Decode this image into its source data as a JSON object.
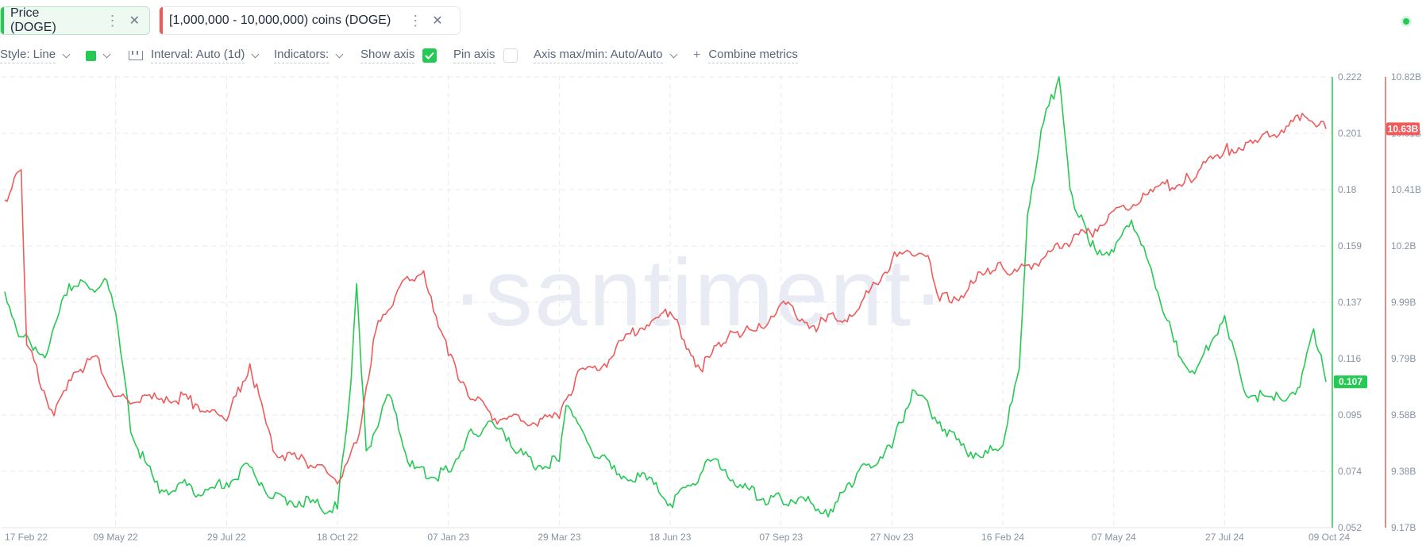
{
  "tabs": [
    {
      "label": "Price (DOGE)",
      "color": "#26c953"
    },
    {
      "label": "[1,000,000 - 10,000,000) coins (DOGE)",
      "color": "#ef5b5b"
    }
  ],
  "toolbar": {
    "style": "Style: Line",
    "interval": "Interval: Auto (1d)",
    "indicators": "Indicators:",
    "show_axis": "Show axis",
    "show_axis_checked": true,
    "pin_axis": "Pin axis",
    "pin_axis_checked": false,
    "axis_maxmin": "Axis max/min: Auto/Auto",
    "combine": "Combine metrics",
    "combine_icon": "plus-icon"
  },
  "watermark": "·santiment·",
  "chart_data": {
    "type": "line",
    "x_ticks": [
      "17 Feb 22",
      "09 May 22",
      "29 Jul 22",
      "18 Oct 22",
      "07 Jan 23",
      "29 Mar 23",
      "18 Jun 23",
      "07 Sep 23",
      "27 Nov 23",
      "16 Feb 24",
      "07 May 24",
      "27 Jul 24",
      "09 Oct 24"
    ],
    "y_left_ticks": [
      "0.222",
      "0.201",
      "0.18",
      "0.159",
      "0.137",
      "0.116",
      "0.095",
      "0.074",
      "0.052"
    ],
    "y_right_ticks": [
      "10.82B",
      "10.61B",
      "10.41B",
      "10.2B",
      "9.99B",
      "9.79B",
      "9.58B",
      "9.38B",
      "9.17B"
    ],
    "ylim_price": [
      0.052,
      0.222
    ],
    "ylim_coins_b": [
      9.17,
      10.82
    ],
    "series": [
      {
        "name": "Price (DOGE)",
        "color": "#26c953",
        "last_label": "0.107",
        "points": [
          [
            "17 Feb 22",
            0.141
          ],
          [
            "01 Mar 22",
            0.124
          ],
          [
            "20 Mar 22",
            0.118
          ],
          [
            "05 Apr 22",
            0.144
          ],
          [
            "20 Apr 22",
            0.142
          ],
          [
            "01 May 22",
            0.146
          ],
          [
            "09 May 22",
            0.133
          ],
          [
            "20 May 22",
            0.088
          ],
          [
            "10 Jun 22",
            0.065
          ],
          [
            "25 Jun 22",
            0.069
          ],
          [
            "10 Jul 22",
            0.064
          ],
          [
            "29 Jul 22",
            0.069
          ],
          [
            "15 Aug 22",
            0.075
          ],
          [
            "01 Sep 22",
            0.063
          ],
          [
            "20 Sep 22",
            0.062
          ],
          [
            "05 Oct 22",
            0.06
          ],
          [
            "18 Oct 22",
            0.059
          ],
          [
            "28 Oct 22",
            0.108
          ],
          [
            "01 Nov 22",
            0.144
          ],
          [
            "08 Nov 22",
            0.081
          ],
          [
            "25 Nov 22",
            0.102
          ],
          [
            "10 Dec 22",
            0.075
          ],
          [
            "25 Dec 22",
            0.071
          ],
          [
            "07 Jan 23",
            0.073
          ],
          [
            "20 Jan 23",
            0.085
          ],
          [
            "05 Feb 23",
            0.092
          ],
          [
            "20 Feb 23",
            0.086
          ],
          [
            "10 Mar 23",
            0.075
          ],
          [
            "29 Mar 23",
            0.077
          ],
          [
            "03 Apr 23",
            0.098
          ],
          [
            "20 Apr 23",
            0.083
          ],
          [
            "10 May 23",
            0.072
          ],
          [
            "01 Jun 23",
            0.07
          ],
          [
            "18 Jun 23",
            0.061
          ],
          [
            "01 Jul 23",
            0.068
          ],
          [
            "21 Jul 23",
            0.078
          ],
          [
            "10 Aug 23",
            0.067
          ],
          [
            "25 Aug 23",
            0.063
          ],
          [
            "07 Sep 23",
            0.063
          ],
          [
            "25 Sep 23",
            0.062
          ],
          [
            "15 Oct 23",
            0.058
          ],
          [
            "27 Oct 23",
            0.069
          ],
          [
            "10 Nov 23",
            0.076
          ],
          [
            "27 Nov 23",
            0.082
          ],
          [
            "12 Dec 23",
            0.104
          ],
          [
            "01 Jan 24",
            0.092
          ],
          [
            "20 Jan 24",
            0.081
          ],
          [
            "05 Feb 24",
            0.08
          ],
          [
            "16 Feb 24",
            0.083
          ],
          [
            "28 Feb 24",
            0.112
          ],
          [
            "05 Mar 24",
            0.17
          ],
          [
            "15 Mar 24",
            0.202
          ],
          [
            "28 Mar 24",
            0.222
          ],
          [
            "05 Apr 24",
            0.18
          ],
          [
            "20 Apr 24",
            0.158
          ],
          [
            "07 May 24",
            0.156
          ],
          [
            "20 May 24",
            0.168
          ],
          [
            "05 Jun 24",
            0.146
          ],
          [
            "20 Jun 24",
            0.122
          ],
          [
            "05 Jul 24",
            0.11
          ],
          [
            "27 Jul 24",
            0.132
          ],
          [
            "10 Aug 24",
            0.104
          ],
          [
            "01 Sep 24",
            0.1
          ],
          [
            "20 Sep 24",
            0.105
          ],
          [
            "30 Sep 24",
            0.127
          ],
          [
            "09 Oct 24",
            0.107
          ]
        ]
      },
      {
        "name": "[1,000,000 - 10,000,000) coins (DOGE)",
        "color": "#ef5b5b",
        "last_label": "10.63B",
        "points": [
          [
            "17 Feb 22",
            10.37
          ],
          [
            "01 Mar 22",
            10.48
          ],
          [
            "05 Mar 22",
            9.84
          ],
          [
            "25 Mar 22",
            9.58
          ],
          [
            "10 Apr 22",
            9.74
          ],
          [
            "25 Apr 22",
            9.8
          ],
          [
            "09 May 22",
            9.65
          ],
          [
            "25 May 22",
            9.63
          ],
          [
            "15 Jun 22",
            9.65
          ],
          [
            "01 Jul 22",
            9.64
          ],
          [
            "29 Jul 22",
            9.56
          ],
          [
            "15 Aug 22",
            9.77
          ],
          [
            "01 Sep 22",
            9.45
          ],
          [
            "20 Sep 22",
            9.42
          ],
          [
            "05 Oct 22",
            9.4
          ],
          [
            "18 Oct 22",
            9.33
          ],
          [
            "01 Nov 22",
            9.48
          ],
          [
            "15 Nov 22",
            9.89
          ],
          [
            "01 Dec 22",
            10.04
          ],
          [
            "15 Dec 22",
            10.09
          ],
          [
            "20 Dec 22",
            10.11
          ],
          [
            "07 Jan 23",
            9.8
          ],
          [
            "25 Jan 23",
            9.64
          ],
          [
            "10 Feb 23",
            9.57
          ],
          [
            "01 Mar 23",
            9.56
          ],
          [
            "29 Mar 23",
            9.57
          ],
          [
            "10 Apr 23",
            9.72
          ],
          [
            "01 May 23",
            9.77
          ],
          [
            "20 May 23",
            9.88
          ],
          [
            "18 Jun 23",
            9.96
          ],
          [
            "10 Jul 23",
            9.75
          ],
          [
            "01 Aug 23",
            9.89
          ],
          [
            "20 Aug 23",
            9.89
          ],
          [
            "07 Sep 23",
            9.99
          ],
          [
            "01 Oct 23",
            9.91
          ],
          [
            "27 Oct 23",
            9.95
          ],
          [
            "10 Nov 23",
            10.03
          ],
          [
            "27 Nov 23",
            10.15
          ],
          [
            "10 Dec 23",
            10.18
          ],
          [
            "25 Dec 23",
            10.14
          ],
          [
            "01 Jan 24",
            10.0
          ],
          [
            "20 Jan 24",
            10.03
          ],
          [
            "05 Feb 24",
            10.12
          ],
          [
            "16 Feb 24",
            10.12
          ],
          [
            "28 Feb 24",
            10.12
          ],
          [
            "15 Mar 24",
            10.15
          ],
          [
            "01 Apr 24",
            10.21
          ],
          [
            "20 Apr 24",
            10.25
          ],
          [
            "07 May 24",
            10.33
          ],
          [
            "01 Jun 24",
            10.39
          ],
          [
            "01 Jul 24",
            10.45
          ],
          [
            "27 Jul 24",
            10.55
          ],
          [
            "20 Aug 24",
            10.58
          ],
          [
            "10 Sep 24",
            10.64
          ],
          [
            "25 Sep 24",
            10.67
          ],
          [
            "09 Oct 24",
            10.63
          ]
        ]
      }
    ]
  }
}
